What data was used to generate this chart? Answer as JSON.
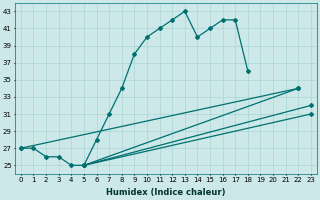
{
  "xlabel": "Humidex (Indice chaleur)",
  "xlim": [
    -0.5,
    23.5
  ],
  "ylim": [
    24,
    44
  ],
  "yticks": [
    25,
    27,
    29,
    31,
    33,
    35,
    37,
    39,
    41,
    43
  ],
  "xticks": [
    0,
    1,
    2,
    3,
    4,
    5,
    6,
    7,
    8,
    9,
    10,
    11,
    12,
    13,
    14,
    15,
    16,
    17,
    18,
    19,
    20,
    21,
    22,
    23
  ],
  "bg_color": "#cce8e8",
  "line_color": "#007070",
  "grid_color": "#aad4d4",
  "lines": [
    {
      "x": [
        0,
        1,
        2,
        3,
        4,
        5,
        6,
        7,
        8,
        9,
        10,
        11,
        12,
        13,
        14,
        15,
        16,
        17,
        18
      ],
      "y": [
        27,
        27,
        26,
        26,
        25,
        25,
        28,
        31,
        34,
        38,
        40,
        41,
        42,
        43,
        40,
        41,
        42,
        42,
        36
      ]
    },
    {
      "x": [
        0,
        22
      ],
      "y": [
        27,
        34
      ]
    },
    {
      "x": [
        5,
        22
      ],
      "y": [
        25,
        34
      ]
    },
    {
      "x": [
        5,
        23
      ],
      "y": [
        25,
        32
      ]
    },
    {
      "x": [
        5,
        23
      ],
      "y": [
        25,
        31
      ]
    }
  ]
}
